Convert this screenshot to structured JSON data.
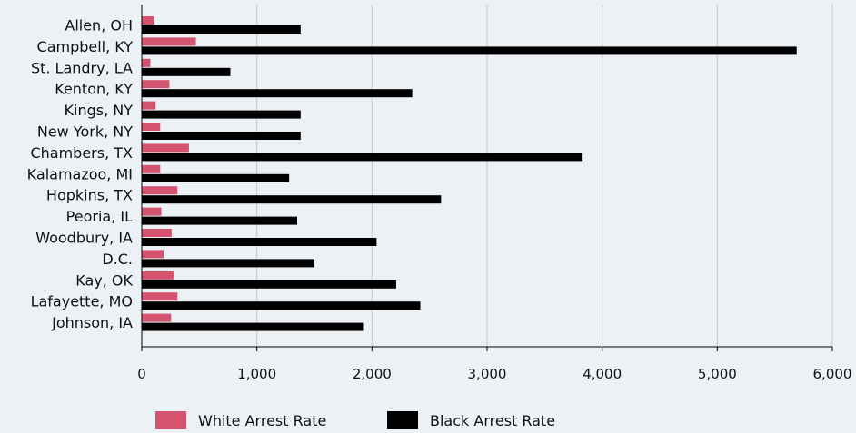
{
  "chart_data": {
    "type": "bar",
    "orientation": "horizontal",
    "categories": [
      "Allen, OH",
      "Campbell, KY",
      "St. Landry, LA",
      "Kenton, KY",
      "Kings, NY",
      "New York, NY",
      "Chambers, TX",
      "Kalamazoo, MI",
      "Hopkins, TX",
      "Peoria, IL",
      "Woodbury, IA",
      "D.C.",
      "Kay, OK",
      "Lafayette, MO",
      "Johnson, IA"
    ],
    "series": [
      {
        "name": "White Arrest Rate",
        "color": "#d4536e",
        "values": [
          110,
          470,
          75,
          240,
          120,
          160,
          410,
          160,
          310,
          170,
          260,
          190,
          280,
          310,
          255
        ]
      },
      {
        "name": "Black Arrest Rate",
        "color": "#000000",
        "values": [
          1380,
          5690,
          770,
          2350,
          1380,
          1380,
          3830,
          1280,
          2600,
          1350,
          2040,
          1500,
          2210,
          2420,
          1930
        ]
      }
    ],
    "xlim": [
      0,
      6000
    ],
    "xticks": [
      0,
      1000,
      2000,
      3000,
      4000,
      5000,
      6000
    ],
    "xtick_labels": [
      "0",
      "1,000",
      "2,000",
      "3,000",
      "4,000",
      "5,000",
      "6,000"
    ],
    "grid": "vertical",
    "legend_position": "bottom"
  }
}
